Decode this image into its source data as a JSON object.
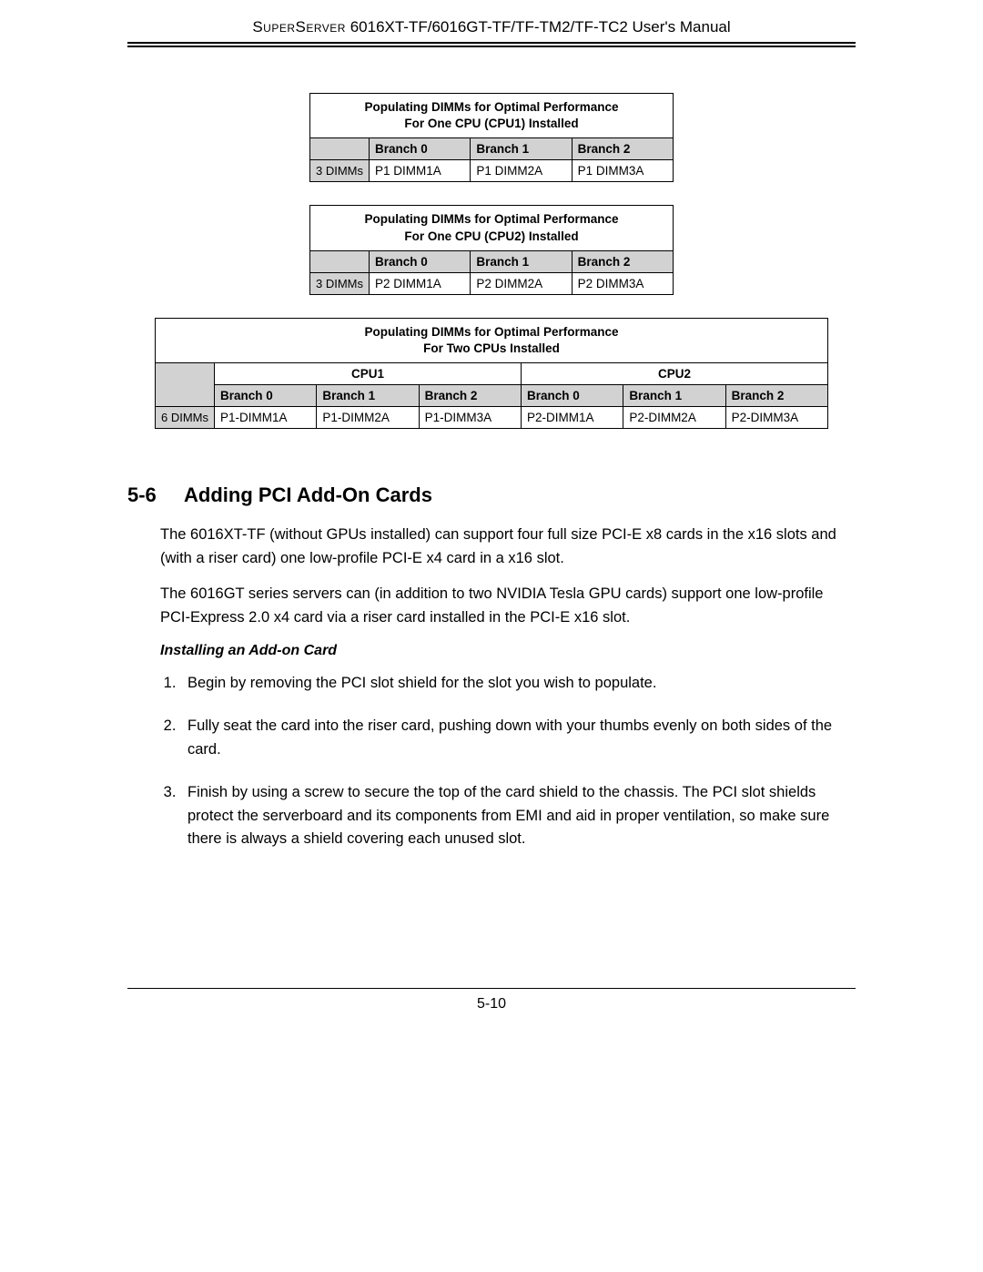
{
  "header": {
    "brand": "SuperServer",
    "model": " 6016XT-TF/6016GT-TF/TF-TM2/TF-TC2 User's Manual"
  },
  "table1": {
    "title_l1": "Populating DIMMs for Optimal Performance",
    "title_l2": "For One CPU (CPU1) Installed",
    "cols": [
      "Branch 0",
      "Branch 1",
      "Branch 2"
    ],
    "row_label": "3 DIMMs",
    "row_cells": [
      "P1 DIMM1A",
      "P1 DIMM2A",
      "P1 DIMM3A"
    ]
  },
  "table2": {
    "title_l1": "Populating DIMMs for Optimal Performance",
    "title_l2": "For One CPU (CPU2) Installed",
    "cols": [
      "Branch 0",
      "Branch 1",
      "Branch 2"
    ],
    "row_label": "3 DIMMs",
    "row_cells": [
      "P2 DIMM1A",
      "P2 DIMM2A",
      "P2 DIMM3A"
    ]
  },
  "table3": {
    "title_l1": "Populating DIMMs for Optimal Performance",
    "title_l2": "For Two CPUs Installed",
    "cpu_heads": [
      "CPU1",
      "CPU2"
    ],
    "cols": [
      "Branch 0",
      "Branch 1",
      "Branch 2",
      "Branch 0",
      "Branch 1",
      "Branch 2"
    ],
    "row_label": "6 DIMMs",
    "row_cells": [
      "P1-DIMM1A",
      "P1-DIMM2A",
      "P1-DIMM3A",
      "P2-DIMM1A",
      "P2-DIMM2A",
      "P2-DIMM3A"
    ]
  },
  "section": {
    "num": "5-6",
    "title": "Adding PCI Add-On Cards",
    "para1": "The 6016XT-TF (without GPUs installed) can support four full size PCI-E x8 cards in the x16 slots and (with a riser card) one low-profile PCI-E x4 card in a x16 slot.",
    "para2": "The 6016GT series servers can (in addition to two NVIDIA Tesla GPU cards) support one low-profile PCI-Express 2.0 x4 card via a riser card installed in the PCI-E x16 slot.",
    "subhead": "Installing an Add-on Card",
    "steps": [
      "Begin by removing the PCI slot shield for the slot you wish to populate.",
      "Fully seat the card into the riser card, pushing down with your thumbs evenly on both sides of the card.",
      "Finish by using a screw to secure the top of the card shield to the chassis. The PCI slot shields protect the serverboard and its components from EMI and aid in proper ventilation, so make sure there is always a shield covering each unused slot."
    ]
  },
  "page_number": "5-10"
}
